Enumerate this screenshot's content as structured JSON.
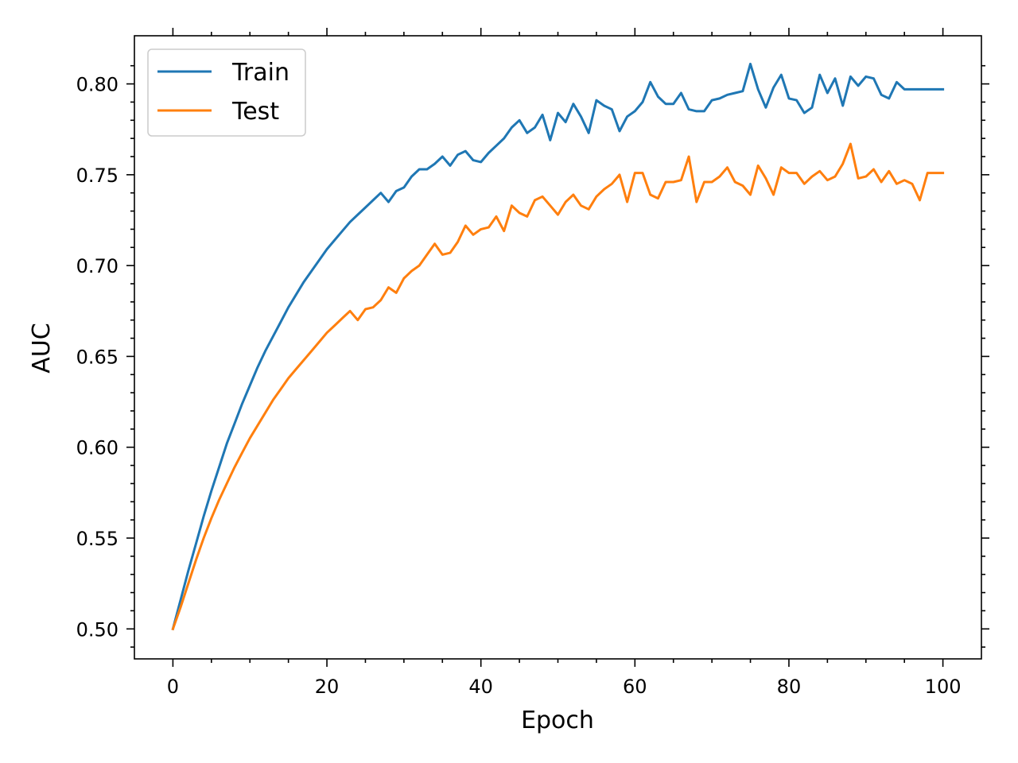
{
  "chart_data": {
    "type": "line",
    "title": "",
    "xlabel": "Epoch",
    "ylabel": "AUC",
    "xlim": [
      -5,
      105
    ],
    "ylim": [
      0.4835,
      0.8265
    ],
    "xticks": [
      0,
      20,
      40,
      60,
      80,
      100
    ],
    "xtick_labels": [
      "0",
      "20",
      "40",
      "60",
      "80",
      "100"
    ],
    "yticks": [
      0.5,
      0.55,
      0.6,
      0.65,
      0.7,
      0.75,
      0.8
    ],
    "ytick_labels": [
      "0.50",
      "0.55",
      "0.60",
      "0.65",
      "0.70",
      "0.75",
      "0.80"
    ],
    "grid": false,
    "legend_position": "upper-left",
    "colors": {
      "Train": "#1f77b4",
      "Test": "#ff7f0e"
    },
    "x": [
      0,
      1,
      2,
      3,
      4,
      5,
      6,
      7,
      8,
      9,
      10,
      11,
      12,
      13,
      14,
      15,
      16,
      17,
      18,
      19,
      20,
      21,
      22,
      23,
      24,
      25,
      26,
      27,
      28,
      29,
      30,
      31,
      32,
      33,
      34,
      35,
      36,
      37,
      38,
      39,
      40,
      41,
      42,
      43,
      44,
      45,
      46,
      47,
      48,
      49,
      50,
      51,
      52,
      53,
      54,
      55,
      56,
      57,
      58,
      59,
      60,
      61,
      62,
      63,
      64,
      65,
      66,
      67,
      68,
      69,
      70,
      71,
      72,
      73,
      74,
      75,
      76,
      77,
      78,
      79,
      80,
      81,
      82,
      83,
      84,
      85,
      86,
      87,
      88,
      89,
      90,
      91,
      92,
      93,
      94,
      95,
      96,
      97,
      98,
      99,
      100
    ],
    "series": [
      {
        "name": "Train",
        "values": [
          0.5,
          0.516,
          0.532,
          0.547,
          0.562,
          0.576,
          0.589,
          0.602,
          0.613,
          0.624,
          0.634,
          0.644,
          0.653,
          0.661,
          0.669,
          0.677,
          0.684,
          0.691,
          0.697,
          0.703,
          0.709,
          0.714,
          0.719,
          0.724,
          0.728,
          0.732,
          0.736,
          0.74,
          0.735,
          0.741,
          0.743,
          0.749,
          0.753,
          0.753,
          0.756,
          0.76,
          0.755,
          0.761,
          0.763,
          0.758,
          0.757,
          0.762,
          0.766,
          0.77,
          0.776,
          0.78,
          0.773,
          0.776,
          0.783,
          0.769,
          0.784,
          0.779,
          0.789,
          0.782,
          0.773,
          0.791,
          0.788,
          0.786,
          0.774,
          0.782,
          0.785,
          0.79,
          0.801,
          0.793,
          0.789,
          0.789,
          0.795,
          0.786,
          0.785,
          0.785,
          0.791,
          0.792,
          0.794,
          0.795,
          0.796,
          0.811,
          0.797,
          0.787,
          0.798,
          0.805,
          0.792,
          0.791,
          0.784,
          0.787,
          0.805,
          0.795,
          0.803,
          0.788,
          0.804,
          0.799,
          0.804,
          0.803,
          0.794,
          0.792,
          0.801,
          0.797,
          0.797,
          0.797,
          0.797,
          0.797,
          0.797
        ]
      },
      {
        "name": "Test",
        "values": [
          0.5,
          0.512,
          0.525,
          0.538,
          0.55,
          0.561,
          0.571,
          0.58,
          0.589,
          0.597,
          0.605,
          0.612,
          0.619,
          0.626,
          0.632,
          0.638,
          0.643,
          0.648,
          0.653,
          0.658,
          0.663,
          0.667,
          0.671,
          0.675,
          0.67,
          0.676,
          0.677,
          0.681,
          0.688,
          0.685,
          0.693,
          0.697,
          0.7,
          0.706,
          0.712,
          0.706,
          0.707,
          0.713,
          0.722,
          0.717,
          0.72,
          0.721,
          0.727,
          0.719,
          0.733,
          0.729,
          0.727,
          0.736,
          0.738,
          0.733,
          0.728,
          0.735,
          0.739,
          0.733,
          0.731,
          0.738,
          0.742,
          0.745,
          0.75,
          0.735,
          0.751,
          0.751,
          0.739,
          0.737,
          0.746,
          0.746,
          0.747,
          0.76,
          0.735,
          0.746,
          0.746,
          0.749,
          0.754,
          0.746,
          0.744,
          0.739,
          0.755,
          0.748,
          0.739,
          0.754,
          0.751,
          0.751,
          0.745,
          0.749,
          0.752,
          0.747,
          0.749,
          0.756,
          0.767,
          0.748,
          0.749,
          0.753,
          0.746,
          0.752,
          0.745,
          0.747,
          0.745,
          0.736,
          0.751,
          0.751,
          0.751
        ]
      }
    ]
  }
}
